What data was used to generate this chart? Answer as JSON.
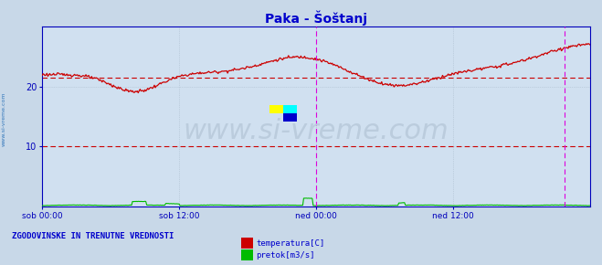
{
  "title": "Paka - Šoštanj",
  "title_color": "#0000cc",
  "background_color": "#c8d8e8",
  "plot_bg_color": "#d0e0f0",
  "ylim": [
    0,
    30
  ],
  "yticks": [
    10,
    20
  ],
  "xlim": [
    0,
    576
  ],
  "xtick_positions": [
    0,
    144,
    288,
    432,
    576
  ],
  "xtick_labels": [
    "sob 00:00",
    "sob 12:00",
    "ned 00:00",
    "ned 12:00",
    ""
  ],
  "grid_color": "#aabbcc",
  "axis_color": "#0000bb",
  "watermark_text": "www.si-vreme.com",
  "watermark_color": "#bbccdd",
  "watermark_fontsize": 22,
  "left_label": "www.si-vreme.com",
  "left_label_color": "#3377bb",
  "legend_text1": "temperatura[C]",
  "legend_text2": "pretok[m3/s]",
  "legend_color": "#0000cc",
  "temp_color": "#cc0000",
  "flow_color": "#00bb00",
  "bottom_label": "ZGODOVINSKE IN TRENUTNE VREDNOSTI",
  "bottom_label_color": "#0000cc",
  "avg_temp_value": 21.5,
  "avg_flow_value": 10.0,
  "avg_line_color": "#cc0000",
  "vertical_line1_x": 288,
  "vertical_line2_x": 549,
  "vertical_line_color": "#dd00dd",
  "arrow_color": "#cc0000",
  "n_points": 577
}
